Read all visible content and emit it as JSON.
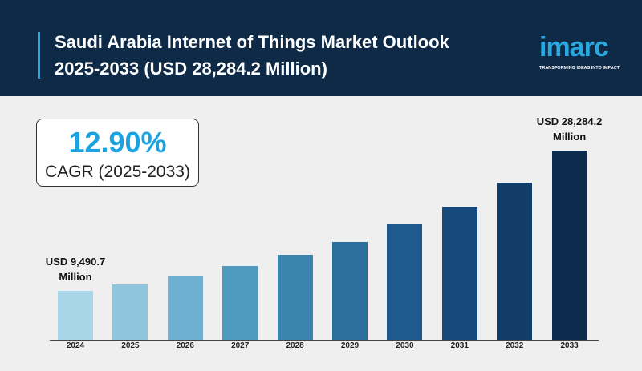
{
  "chart_data": {
    "type": "bar",
    "title": "Saudi Arabia Internet of Things Market Outlook 2025-2033 (USD 28,284.2 Million)",
    "cagr_value": "12.90%",
    "cagr_label": "CAGR (2025-2033)",
    "categories": [
      "2024",
      "2025",
      "2026",
      "2027",
      "2028",
      "2029",
      "2030",
      "2031",
      "2032",
      "2033"
    ],
    "values": [
      9490.7,
      10350,
      11530,
      12820,
      14330,
      16040,
      18410,
      20770,
      23990,
      28284.2
    ],
    "value_labels": [
      "USD 9,490.7 Million",
      null,
      null,
      null,
      null,
      null,
      null,
      null,
      null,
      "USD 28,284.2 Million"
    ],
    "colors": [
      "#a8d5e8",
      "#8fc6de",
      "#6eb0cf",
      "#4f9bbf",
      "#3a84ad",
      "#2d6f9c",
      "#1e5a8c",
      "#174a7c",
      "#123d68",
      "#0d2b4c"
    ]
  },
  "logo": {
    "name": "imarc",
    "tagline": "TRANSFORMING IDEAS INTO IMPACT"
  }
}
